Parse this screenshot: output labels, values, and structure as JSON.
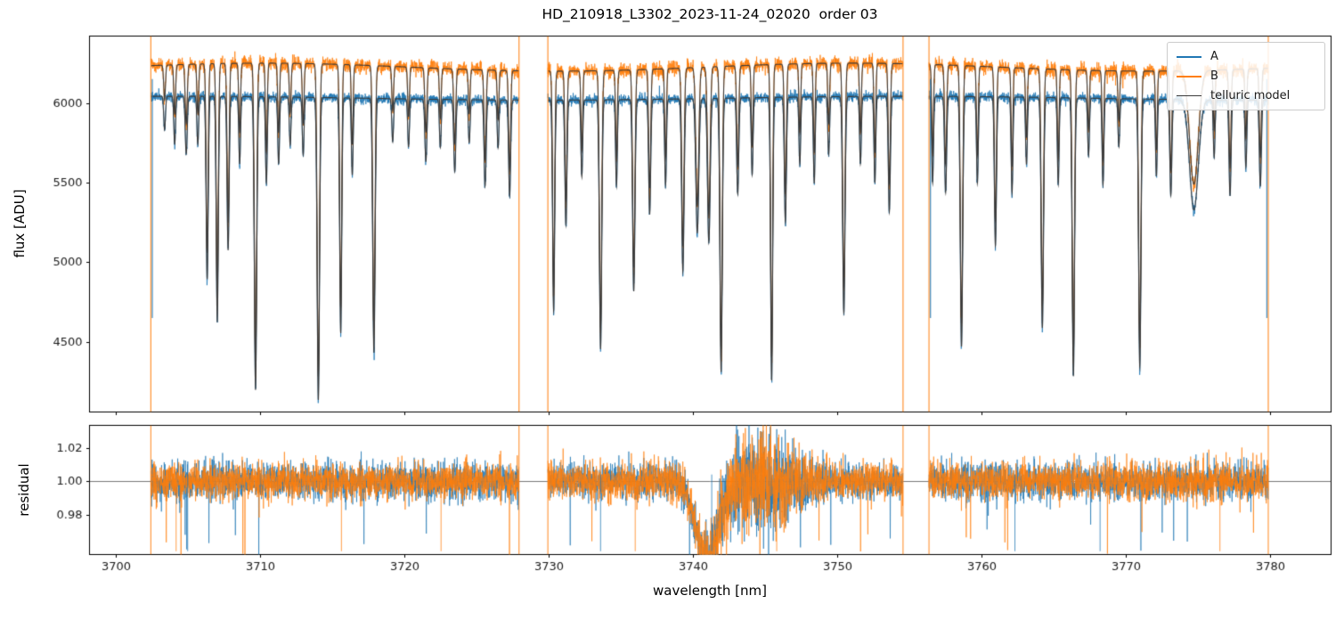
{
  "title": "HD_210918_L3302_2023-11-24_02020  order 03",
  "chart_data": [
    {
      "type": "line",
      "title": "HD_210918_L3302_2023-11-24_02020  order 03",
      "xlabel": "wavelength [nm]",
      "ylabel": "flux [ADU]",
      "xlim": [
        3698.2,
        3784.2
      ],
      "ylim": [
        4060,
        6420
      ],
      "xticks": [
        3700,
        3710,
        3720,
        3730,
        3740,
        3750,
        3760,
        3770,
        3780
      ],
      "yticks": [
        4500,
        5000,
        5500,
        6000
      ],
      "grid": false,
      "legend_position": "upper right",
      "legend": [
        {
          "label": "A",
          "color": "#1f77b4",
          "linewidth": 1.5
        },
        {
          "label": "B",
          "color": "#ff7f0e",
          "linewidth": 1.5
        },
        {
          "label": "telluric model",
          "color": "#3b3b3b",
          "linewidth": 1.0
        }
      ],
      "segments": [
        [
          3702.45,
          3727.95
        ],
        [
          3729.95,
          3754.55
        ],
        [
          3756.35,
          3779.85
        ]
      ],
      "continuum_flux": {
        "A": 6030,
        "B": 6225
      },
      "noise_sigma_adu": {
        "A": 22,
        "B": 32
      },
      "absorption_lines": [
        [
          3703.4,
          0.035,
          0.06
        ],
        [
          3704.1,
          0.05,
          0.06
        ],
        [
          3704.9,
          0.06,
          0.07
        ],
        [
          3705.7,
          0.05,
          0.06
        ],
        [
          3706.35,
          0.19,
          0.07
        ],
        [
          3707.05,
          0.235,
          0.07
        ],
        [
          3707.8,
          0.16,
          0.07
        ],
        [
          3708.6,
          0.07,
          0.06
        ],
        [
          3709.7,
          0.305,
          0.08
        ],
        [
          3710.45,
          0.09,
          0.06
        ],
        [
          3711.3,
          0.07,
          0.06
        ],
        [
          3712.1,
          0.05,
          0.06
        ],
        [
          3713.0,
          0.06,
          0.06
        ],
        [
          3714.05,
          0.315,
          0.08
        ],
        [
          3715.6,
          0.245,
          0.07
        ],
        [
          3716.4,
          0.08,
          0.06
        ],
        [
          3717.9,
          0.265,
          0.08
        ],
        [
          3719.2,
          0.045,
          0.06
        ],
        [
          3720.3,
          0.05,
          0.06
        ],
        [
          3721.5,
          0.065,
          0.07
        ],
        [
          3722.5,
          0.05,
          0.06
        ],
        [
          3723.5,
          0.075,
          0.07
        ],
        [
          3724.5,
          0.045,
          0.06
        ],
        [
          3725.6,
          0.09,
          0.07
        ],
        [
          3726.5,
          0.05,
          0.06
        ],
        [
          3727.3,
          0.1,
          0.07
        ],
        [
          3730.35,
          0.22,
          0.07
        ],
        [
          3731.2,
          0.13,
          0.07
        ],
        [
          3732.3,
          0.08,
          0.06
        ],
        [
          3733.6,
          0.26,
          0.08
        ],
        [
          3734.7,
          0.09,
          0.06
        ],
        [
          3735.9,
          0.2,
          0.08
        ],
        [
          3737.0,
          0.12,
          0.07
        ],
        [
          3738.1,
          0.09,
          0.06
        ],
        [
          3739.3,
          0.18,
          0.08
        ],
        [
          3740.3,
          0.14,
          0.1
        ],
        [
          3741.1,
          0.15,
          0.09
        ],
        [
          3741.95,
          0.285,
          0.08
        ],
        [
          3743.1,
          0.1,
          0.07
        ],
        [
          3744.1,
          0.08,
          0.06
        ],
        [
          3745.45,
          0.295,
          0.07
        ],
        [
          3746.4,
          0.13,
          0.07
        ],
        [
          3747.4,
          0.07,
          0.06
        ],
        [
          3748.4,
          0.09,
          0.06
        ],
        [
          3749.4,
          0.06,
          0.06
        ],
        [
          3750.45,
          0.225,
          0.08
        ],
        [
          3751.6,
          0.07,
          0.06
        ],
        [
          3752.6,
          0.09,
          0.06
        ],
        [
          3753.6,
          0.12,
          0.07
        ],
        [
          3756.6,
          0.09,
          0.06
        ],
        [
          3757.5,
          0.1,
          0.07
        ],
        [
          3758.6,
          0.26,
          0.08
        ],
        [
          3759.7,
          0.09,
          0.06
        ],
        [
          3760.95,
          0.155,
          0.07
        ],
        [
          3762.1,
          0.1,
          0.06
        ],
        [
          3763.1,
          0.07,
          0.06
        ],
        [
          3764.2,
          0.24,
          0.08
        ],
        [
          3765.3,
          0.09,
          0.06
        ],
        [
          3766.35,
          0.29,
          0.08
        ],
        [
          3767.4,
          0.06,
          0.06
        ],
        [
          3768.4,
          0.09,
          0.06
        ],
        [
          3769.5,
          0.05,
          0.06
        ],
        [
          3770.95,
          0.28,
          0.08
        ],
        [
          3772.1,
          0.08,
          0.06
        ],
        [
          3773.1,
          0.1,
          0.07
        ],
        [
          3774.7,
          0.115,
          0.3
        ],
        [
          3776.1,
          0.06,
          0.06
        ],
        [
          3777.2,
          0.1,
          0.07
        ],
        [
          3778.3,
          0.07,
          0.06
        ],
        [
          3779.3,
          0.09,
          0.07
        ]
      ],
      "edge_artifact_wavelengths": [
        3702.45,
        3727.95,
        3729.95,
        3754.55,
        3756.35,
        3779.85
      ],
      "edge_artifacts_blue": [
        3702.55,
        3756.45,
        3779.75
      ]
    },
    {
      "type": "line",
      "ylabel": "residual",
      "xlim": [
        3698.2,
        3784.2
      ],
      "ylim": [
        0.956,
        1.0335
      ],
      "yticks": [
        0.98,
        1.0,
        1.02
      ],
      "yticklabels": [
        "0.98",
        "1.00",
        "1.02"
      ],
      "baseline": 1.0,
      "noise_sigma": 0.0055,
      "telluric_dip": {
        "center": 3741.0,
        "depth": 0.045,
        "sigma": 0.8
      },
      "noise_boost_region": {
        "center": 3744.5,
        "sigma": 2.0,
        "factor": 1.9
      },
      "spikes": {
        "blue": [
          3705.0,
          3733.6,
          3741.3,
          3762.3,
          3768.2
        ],
        "orange": [
          3704.2,
          3715.65,
          3722.55,
          3736.0,
          3745.8,
          3776.5
        ]
      }
    }
  ]
}
